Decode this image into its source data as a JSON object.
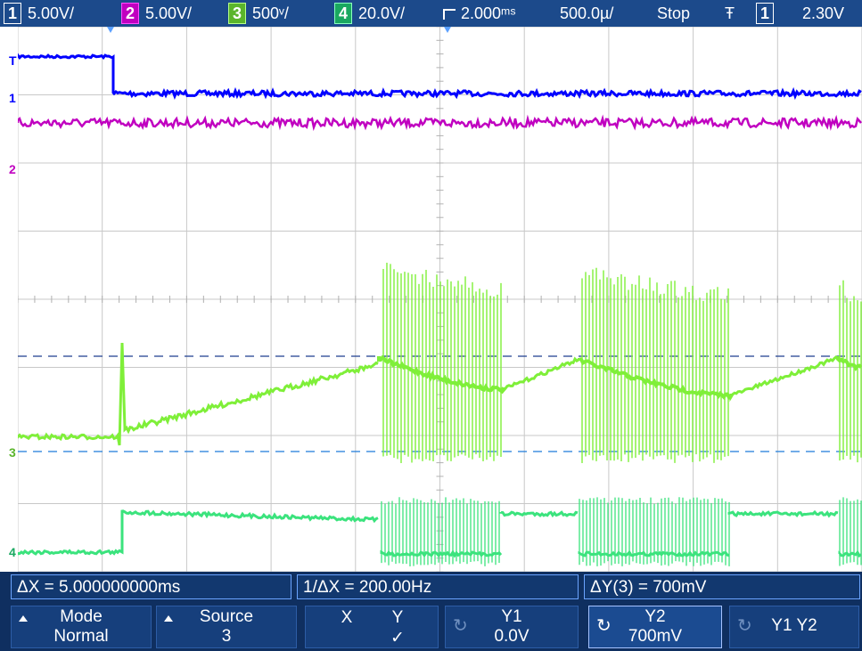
{
  "header": {
    "ch1_num": "1",
    "ch1_scale": "5.00V/",
    "ch2_num": "2",
    "ch2_scale": "5.00V/",
    "ch3_num": "3",
    "ch3_scale": "500ᵛ/",
    "ch4_num": "4",
    "ch4_scale": "20.0V/",
    "delay": "2.000ᵐˢ",
    "timebase": "500.0µ/",
    "run_state": "Stop",
    "trig_slope": "Ŧ",
    "trig_ch": "1",
    "trig_level": "2.30V",
    "colors": {
      "ch1": "#0000ff",
      "ch2": "#c000c0",
      "ch3": "#7fef39",
      "ch4": "#3be37d"
    }
  },
  "markers": {
    "ch1": "1",
    "ch2": "2",
    "ch3": "3",
    "ch4": "4",
    "trig": "T"
  },
  "measurements": {
    "delta_x": "ΔX = 5.000000000ms",
    "inv_delta_x": "1/ΔX = 200.00Hz",
    "delta_y": "ΔY(3) = 700mV"
  },
  "softkeys": {
    "mode_title": "Mode",
    "mode_value": "Normal",
    "source_title": "Source",
    "source_value": "3",
    "x_label": "X",
    "y_label": "Y",
    "y_check": "✓",
    "y1_title": "Y1",
    "y1_value": "0.0V",
    "y2_title": "Y2",
    "y2_value": "700mV",
    "y1y2_label": "Y1 Y2"
  }
}
